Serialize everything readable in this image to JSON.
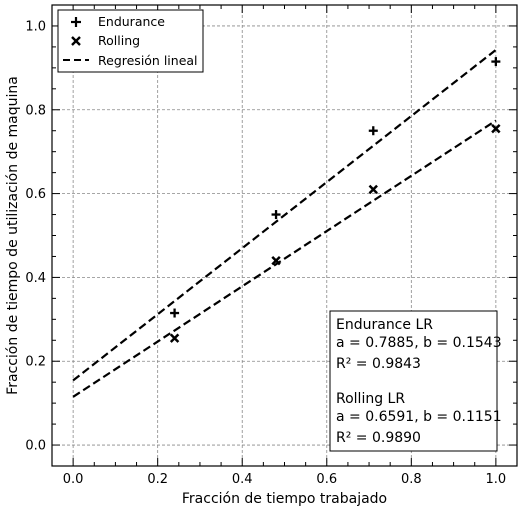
{
  "chart_data": {
    "type": "scatter",
    "xlabel": "Fracción de tiempo trabajado",
    "ylabel": "Fracción de tiempo de utilización de maquina",
    "xlim": [
      -0.05,
      1.05
    ],
    "ylim": [
      -0.05,
      1.05
    ],
    "x_ticks": [
      "0.0",
      "0.2",
      "0.4",
      "0.6",
      "0.8",
      "1.0"
    ],
    "y_ticks": [
      "0.0",
      "0.2",
      "0.4",
      "0.6",
      "0.8",
      "1.0"
    ],
    "grid": true,
    "legend_position": "top-left",
    "series": [
      {
        "name": "Endurance",
        "marker": "plus",
        "x": [
          0.24,
          0.48,
          0.71,
          1.0
        ],
        "y": [
          0.315,
          0.55,
          0.75,
          0.915
        ]
      },
      {
        "name": "Rolling",
        "marker": "x",
        "x": [
          0.24,
          0.48,
          0.71,
          1.0
        ],
        "y": [
          0.255,
          0.44,
          0.61,
          0.755
        ]
      }
    ],
    "regression_lines": [
      {
        "fit_of": "Endurance",
        "a": 0.7885,
        "b": 0.1543,
        "x_range": [
          0,
          1.0
        ]
      },
      {
        "fit_of": "Rolling",
        "a": 0.6591,
        "b": 0.1151,
        "x_range": [
          0,
          1.0
        ]
      }
    ],
    "legend": {
      "endurance": "Endurance",
      "rolling": "Rolling",
      "regression": "Regresión lineal"
    },
    "annotation": {
      "endurance_title": "Endurance LR",
      "endurance_ab": "a = 0.7885, b = 0.1543",
      "endurance_r2": "R² = 0.9843",
      "rolling_title": "Rolling LR",
      "rolling_ab": "a = 0.6591, b = 0.1151",
      "rolling_r2": "R² = 0.9890"
    }
  }
}
